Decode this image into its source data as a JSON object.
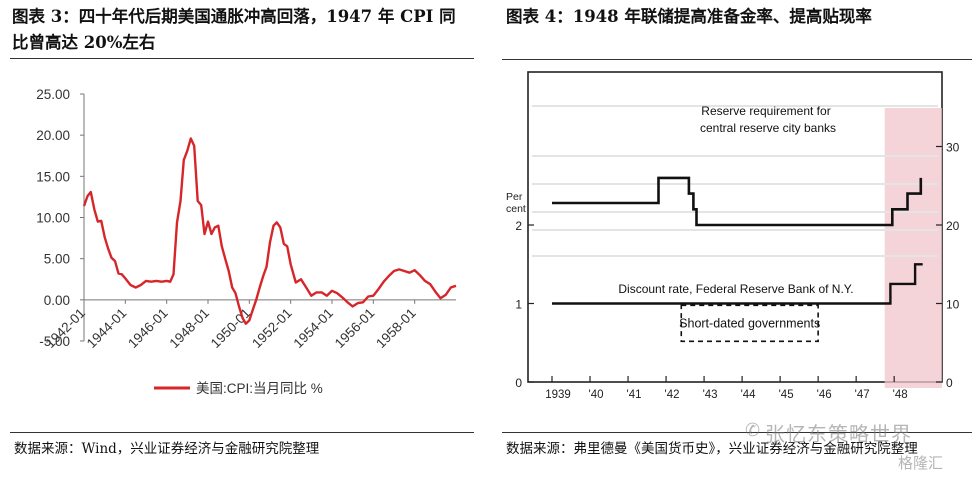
{
  "left_panel": {
    "title": "图表 3：四十年代后期美国通胀冲高回落，1947 年 CPI 同比曾高达 20%左右",
    "source": "数据来源：Wind，兴业证券经济与金融研究院整理"
  },
  "right_panel": {
    "title": "图表 4：1948 年联储提高准备金率、提高贴现率",
    "source": "数据来源：弗里德曼《美国货币史》，兴业证券经济与金融研究院整理"
  },
  "watermark": {
    "text": "张忆东策略世界",
    "sub": "格隆汇"
  },
  "colors": {
    "cpi_line": "#d7262a",
    "recession_shade": "#f2c6cc"
  },
  "chart_data": [
    {
      "type": "line",
      "title": "",
      "xlabel": "",
      "ylabel": "",
      "ylim": [
        -5,
        25
      ],
      "yticks": [
        "25.00",
        "20.00",
        "15.00",
        "10.00",
        "5.00",
        "0.00",
        "-5.00"
      ],
      "xticks": [
        "1942-01",
        "1944-01",
        "1946-01",
        "1948-01",
        "1950-01",
        "1952-01",
        "1954-01",
        "1956-01",
        "1958-01"
      ],
      "legend": "bottom",
      "series": [
        {
          "name": "美国:CPI:当月同比 %",
          "x": [
            1942.0,
            1942.17,
            1942.33,
            1942.5,
            1942.67,
            1942.83,
            1943.0,
            1943.17,
            1943.33,
            1943.5,
            1943.67,
            1943.83,
            1944.0,
            1944.25,
            1944.5,
            1944.75,
            1945.0,
            1945.25,
            1945.5,
            1945.75,
            1946.0,
            1946.17,
            1946.33,
            1946.5,
            1946.67,
            1946.83,
            1947.0,
            1947.17,
            1947.33,
            1947.5,
            1947.67,
            1947.83,
            1948.0,
            1948.17,
            1948.33,
            1948.5,
            1948.67,
            1948.83,
            1949.0,
            1949.17,
            1949.33,
            1949.5,
            1949.67,
            1949.83,
            1950.0,
            1950.17,
            1950.33,
            1950.5,
            1950.67,
            1950.83,
            1951.0,
            1951.17,
            1951.33,
            1951.5,
            1951.67,
            1951.83,
            1952.0,
            1952.25,
            1952.5,
            1952.75,
            1953.0,
            1953.25,
            1953.5,
            1953.75,
            1954.0,
            1954.25,
            1954.5,
            1954.75,
            1955.0,
            1955.25,
            1955.5,
            1955.75,
            1956.0,
            1956.25,
            1956.5,
            1956.75,
            1957.0,
            1957.25,
            1957.5,
            1957.75,
            1958.0,
            1958.25,
            1958.5,
            1958.75,
            1959.0,
            1959.25,
            1959.5,
            1959.75,
            1960.0
          ],
          "y": [
            11.4,
            12.6,
            13.1,
            11.0,
            9.5,
            9.6,
            7.6,
            6.2,
            5.1,
            4.7,
            3.2,
            3.1,
            2.6,
            1.8,
            1.5,
            1.8,
            2.3,
            2.2,
            2.3,
            2.2,
            2.3,
            2.2,
            3.1,
            9.4,
            12.0,
            17.0,
            18.1,
            19.6,
            18.7,
            12.0,
            11.5,
            8.0,
            9.5,
            8.0,
            8.8,
            9.0,
            6.5,
            5.0,
            3.5,
            1.5,
            0.8,
            -0.8,
            -2.2,
            -2.9,
            -2.5,
            -1.2,
            0.0,
            1.5,
            2.9,
            4.0,
            7.0,
            9.0,
            9.4,
            8.8,
            6.8,
            6.5,
            4.3,
            2.1,
            2.5,
            1.5,
            0.5,
            0.9,
            0.9,
            0.5,
            1.1,
            0.8,
            0.3,
            -0.3,
            -0.8,
            -0.4,
            -0.3,
            0.4,
            0.5,
            1.3,
            2.2,
            2.9,
            3.5,
            3.7,
            3.5,
            3.3,
            3.6,
            3.0,
            2.3,
            1.9,
            1.0,
            0.2,
            0.6,
            1.5,
            1.7
          ]
        }
      ]
    },
    {
      "type": "line",
      "title": "",
      "xlabel": "",
      "ylabel": "Per cent",
      "ylim_left": [
        0,
        3
      ],
      "ylim_right": [
        0,
        30
      ],
      "yticks_left": [
        "0",
        "1",
        "2"
      ],
      "yticks_right": [
        "0",
        "10",
        "20",
        "30"
      ],
      "xticks": [
        "1939",
        "'40",
        "'41",
        "'42",
        "'43",
        "'44",
        "'45",
        "'46",
        "'47",
        "'48"
      ],
      "shaded_region": [
        1947.75,
        1949.0
      ],
      "series": [
        {
          "name": "Reserve requirement for central reserve city banks",
          "axis": "right",
          "x": [
            1939.0,
            1941.8,
            1941.8,
            1942.6,
            1942.6,
            1942.72,
            1942.72,
            1942.8,
            1942.8,
            1947.95,
            1947.95,
            1948.35,
            1948.35,
            1948.7,
            1948.7
          ],
          "y": [
            22.8,
            22.8,
            26.0,
            26.0,
            24.0,
            24.0,
            22.0,
            22.0,
            20.0,
            20.0,
            22.0,
            22.0,
            24.0,
            24.0,
            26.0
          ]
        },
        {
          "name": "Discount rate, Federal Reserve Bank of N.Y.",
          "axis": "left",
          "x": [
            1939.0,
            1947.9,
            1947.9,
            1948.55,
            1948.55,
            1948.75
          ],
          "y": [
            1.0,
            1.0,
            1.25,
            1.25,
            1.5,
            1.5
          ]
        },
        {
          "name": "Short-dated governments",
          "axis": "left",
          "style": "dashed",
          "x": [
            1942.4,
            1946.0
          ],
          "y": [
            0.62,
            0.62
          ]
        }
      ]
    }
  ]
}
